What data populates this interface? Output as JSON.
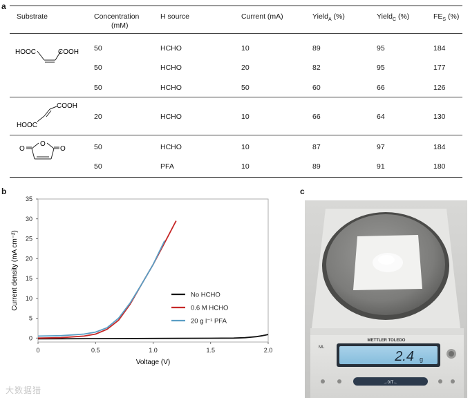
{
  "panel_a": {
    "letter": "a",
    "headers": {
      "substrate": "Substrate",
      "concentration": "Concentration",
      "concentration_unit": "(mM)",
      "h_source": "H source",
      "current": "Current (mA)",
      "yield_a_prefix": "Yield",
      "yield_a_sub": "A",
      "yield_a_suffix": " (%)",
      "yield_c_prefix": "Yield",
      "yield_c_sub": "C",
      "yield_c_suffix": " (%)",
      "fe_prefix": "FE",
      "fe_sub": "S",
      "fe_suffix": " (%)"
    },
    "molecules": {
      "maleic_left": "HOOC",
      "maleic_right": "COOH",
      "fumaric_top": "COOH",
      "fumaric_bottom": "HOOC",
      "anhydride_left_o": "O",
      "anhydride_right_o": "O",
      "anhydride_ring_o": "O"
    },
    "rows": [
      {
        "concentration": "50",
        "h_source": "HCHO",
        "current": "10",
        "yield_a": "89",
        "yield_c": "95",
        "fe": "184"
      },
      {
        "concentration": "50",
        "h_source": "HCHO",
        "current": "20",
        "yield_a": "82",
        "yield_c": "95",
        "fe": "177"
      },
      {
        "concentration": "50",
        "h_source": "HCHO",
        "current": "50",
        "yield_a": "60",
        "yield_c": "66",
        "fe": "126"
      },
      {
        "concentration": "20",
        "h_source": "HCHO",
        "current": "10",
        "yield_a": "66",
        "yield_c": "64",
        "fe": "130"
      },
      {
        "concentration": "50",
        "h_source": "HCHO",
        "current": "10",
        "yield_a": "87",
        "yield_c": "97",
        "fe": "184"
      },
      {
        "concentration": "50",
        "h_source": "PFA",
        "current": "10",
        "yield_a": "89",
        "yield_c": "91",
        "fe": "180"
      }
    ]
  },
  "panel_b": {
    "letter": "b"
  },
  "chart_data": {
    "type": "line",
    "xlabel": "Voltage (V)",
    "ylabel": "Current density (mA cm⁻²)",
    "xlim": [
      0,
      2.0
    ],
    "ylim": [
      -1,
      35
    ],
    "x_ticks": [
      "0",
      "0.5",
      "1.0",
      "1.5",
      "2.0"
    ],
    "y_ticks": [
      "0",
      "5",
      "10",
      "15",
      "20",
      "25",
      "30",
      "35"
    ],
    "legend_position": "right-middle",
    "series": [
      {
        "name": "No HCHO",
        "color": "#111111",
        "x": [
          0,
          0.5,
          1.0,
          1.5,
          1.7,
          1.8,
          1.9,
          1.95,
          2.0
        ],
        "y": [
          -0.2,
          -0.15,
          -0.1,
          -0.05,
          0,
          0.1,
          0.35,
          0.6,
          0.9
        ]
      },
      {
        "name": "0.6 M HCHO",
        "color": "#c62828",
        "x": [
          0,
          0.2,
          0.4,
          0.5,
          0.6,
          0.7,
          0.8,
          0.9,
          1.0,
          1.1,
          1.2
        ],
        "y": [
          0,
          0.1,
          0.5,
          1.0,
          2.2,
          4.5,
          8.5,
          13.5,
          18.5,
          24,
          29.5
        ]
      },
      {
        "name": "20 g l⁻¹ PFA",
        "color": "#5a9ec4",
        "x": [
          0,
          0.2,
          0.4,
          0.5,
          0.6,
          0.7,
          0.8,
          0.9,
          1.0,
          1.05,
          1.1
        ],
        "y": [
          0.5,
          0.6,
          1.0,
          1.5,
          2.6,
          5.0,
          8.8,
          13.5,
          18.5,
          21.5,
          24.5
        ]
      }
    ]
  },
  "panel_c": {
    "letter": "c",
    "brand": "METTLER TOLEDO",
    "display_value": "2.4",
    "display_unit": "g",
    "model_label": "ML",
    "button_label": "→0/T←",
    "watermark": "大数据猎"
  }
}
